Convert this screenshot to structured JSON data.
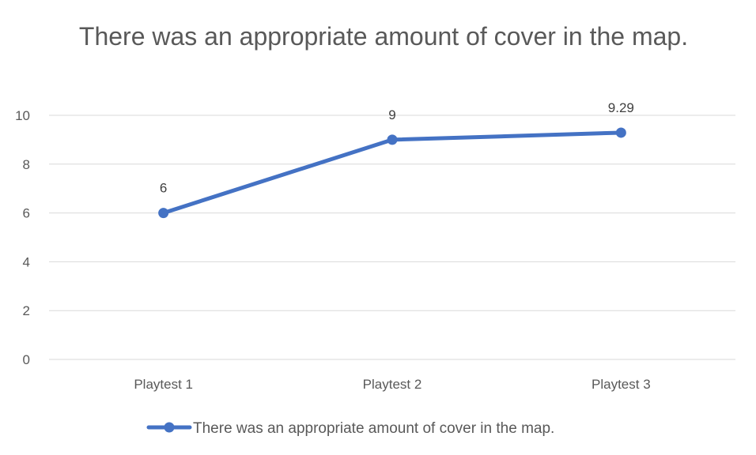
{
  "chart_data": {
    "type": "line",
    "title": "There was an appropriate amount of cover in the map.",
    "xlabel": "",
    "ylabel": "",
    "categories": [
      "Playtest 1",
      "Playtest 2",
      "Playtest 3"
    ],
    "series": [
      {
        "name": "There was an appropriate amount of cover in the map.",
        "values": [
          6,
          9,
          9.29
        ],
        "data_labels": [
          "6",
          "9",
          "9.29"
        ],
        "color": "#4472c4"
      }
    ],
    "ylim": [
      0,
      10
    ],
    "yticks": [
      0,
      2,
      4,
      6,
      8,
      10
    ],
    "ytick_labels": [
      "0",
      "2",
      "4",
      "6",
      "8",
      "10"
    ],
    "grid": true,
    "legend_position": "bottom"
  }
}
